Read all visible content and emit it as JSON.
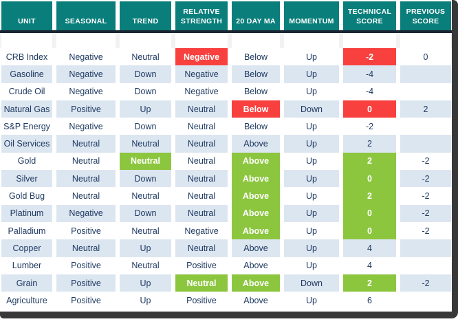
{
  "colors": {
    "header_bg": "#0A7E7B",
    "divider": "#1A2533",
    "row_alt": "#DCE6F1",
    "text": "#1F3A60",
    "red": "#F8403E",
    "green": "#8CC63F",
    "frame": "#383838",
    "highlight_text": "#FFFFFF"
  },
  "table": {
    "columns": [
      {
        "id": "unit",
        "label": "UNIT"
      },
      {
        "id": "seasonal",
        "label": "SEASONAL"
      },
      {
        "id": "trend",
        "label": "TREND"
      },
      {
        "id": "relative-strength",
        "label": "RELATIVE STRENGTH"
      },
      {
        "id": "twenty-day-ma",
        "label": "20 DAY MA"
      },
      {
        "id": "momentum",
        "label": "MOMENTUM"
      },
      {
        "id": "technical-score",
        "label": "TECHNICAL SCORE"
      },
      {
        "id": "previous-score",
        "label": "PREVIOUS SCORE"
      }
    ],
    "rows": [
      {
        "unit": "CRB Index",
        "values": [
          {
            "v": "Negative"
          },
          {
            "v": "Neutral"
          },
          {
            "v": "Negative",
            "h": "red"
          },
          {
            "v": "Below"
          },
          {
            "v": "Up"
          },
          {
            "v": "-2",
            "h": "red"
          },
          {
            "v": "0"
          }
        ]
      },
      {
        "unit": "Gasoline",
        "values": [
          {
            "v": "Negative"
          },
          {
            "v": "Down"
          },
          {
            "v": "Negative"
          },
          {
            "v": "Below"
          },
          {
            "v": "Up"
          },
          {
            "v": "-4"
          },
          {
            "v": ""
          }
        ]
      },
      {
        "unit": "Crude Oil",
        "values": [
          {
            "v": "Negative"
          },
          {
            "v": "Down"
          },
          {
            "v": "Negative"
          },
          {
            "v": "Below"
          },
          {
            "v": "Up"
          },
          {
            "v": "-4"
          },
          {
            "v": ""
          }
        ]
      },
      {
        "unit": "Natural Gas",
        "values": [
          {
            "v": "Positive"
          },
          {
            "v": "Up"
          },
          {
            "v": "Neutral"
          },
          {
            "v": "Below",
            "h": "red"
          },
          {
            "v": "Down"
          },
          {
            "v": "0",
            "h": "red"
          },
          {
            "v": "2"
          }
        ]
      },
      {
        "unit": "S&P Energy",
        "values": [
          {
            "v": "Negative"
          },
          {
            "v": "Down"
          },
          {
            "v": "Neutral"
          },
          {
            "v": "Below"
          },
          {
            "v": "Up"
          },
          {
            "v": "-2"
          },
          {
            "v": ""
          }
        ]
      },
      {
        "unit": "Oil Services",
        "values": [
          {
            "v": "Neutral"
          },
          {
            "v": "Neutral"
          },
          {
            "v": "Neutral"
          },
          {
            "v": "Above"
          },
          {
            "v": "Up"
          },
          {
            "v": "2"
          },
          {
            "v": ""
          }
        ]
      },
      {
        "unit": "Gold",
        "values": [
          {
            "v": "Neutral"
          },
          {
            "v": "Neutral",
            "h": "green"
          },
          {
            "v": "Neutral"
          },
          {
            "v": "Above",
            "h": "green"
          },
          {
            "v": "Up"
          },
          {
            "v": "2",
            "h": "green"
          },
          {
            "v": "-2"
          }
        ]
      },
      {
        "unit": "Silver",
        "values": [
          {
            "v": "Neutral"
          },
          {
            "v": "Down"
          },
          {
            "v": "Neutral"
          },
          {
            "v": "Above",
            "h": "green"
          },
          {
            "v": "Up"
          },
          {
            "v": "0",
            "h": "green"
          },
          {
            "v": "-2"
          }
        ]
      },
      {
        "unit": "Gold Bug",
        "values": [
          {
            "v": "Neutral"
          },
          {
            "v": "Neutral"
          },
          {
            "v": "Neutral"
          },
          {
            "v": "Above",
            "h": "green"
          },
          {
            "v": "Up"
          },
          {
            "v": "2",
            "h": "green"
          },
          {
            "v": "-2"
          }
        ]
      },
      {
        "unit": "Platinum",
        "values": [
          {
            "v": "Negative"
          },
          {
            "v": "Down"
          },
          {
            "v": "Neutral"
          },
          {
            "v": "Above",
            "h": "green"
          },
          {
            "v": "Up"
          },
          {
            "v": "0",
            "h": "green"
          },
          {
            "v": "-2"
          }
        ]
      },
      {
        "unit": "Palladium",
        "values": [
          {
            "v": "Positive"
          },
          {
            "v": "Neutral"
          },
          {
            "v": "Negative"
          },
          {
            "v": "Above",
            "h": "green"
          },
          {
            "v": "Up"
          },
          {
            "v": "0",
            "h": "green"
          },
          {
            "v": "-2"
          }
        ]
      },
      {
        "unit": "Copper",
        "values": [
          {
            "v": "Neutral"
          },
          {
            "v": "Up"
          },
          {
            "v": "Neutral"
          },
          {
            "v": "Above"
          },
          {
            "v": "Up"
          },
          {
            "v": "4"
          },
          {
            "v": ""
          }
        ]
      },
      {
        "unit": "Lumber",
        "values": [
          {
            "v": "Positive"
          },
          {
            "v": "Neutral"
          },
          {
            "v": "Positive"
          },
          {
            "v": "Above"
          },
          {
            "v": "Up"
          },
          {
            "v": "4"
          },
          {
            "v": ""
          }
        ]
      },
      {
        "unit": "Grain",
        "values": [
          {
            "v": "Positive"
          },
          {
            "v": "Up"
          },
          {
            "v": "Neutral",
            "h": "green"
          },
          {
            "v": "Above",
            "h": "green"
          },
          {
            "v": "Down"
          },
          {
            "v": "2",
            "h": "green"
          },
          {
            "v": "-2"
          }
        ]
      },
      {
        "unit": "Agriculture",
        "values": [
          {
            "v": "Positive"
          },
          {
            "v": "Up"
          },
          {
            "v": "Positive"
          },
          {
            "v": "Above"
          },
          {
            "v": "Up"
          },
          {
            "v": "6"
          },
          {
            "v": ""
          }
        ]
      }
    ]
  },
  "chart_data": {
    "type": "table",
    "title": "Commodity technical score table",
    "columns": [
      "UNIT",
      "SEASONAL",
      "TREND",
      "RELATIVE STRENGTH",
      "20 DAY MA",
      "MOMENTUM",
      "TECHNICAL SCORE",
      "PREVIOUS SCORE"
    ],
    "rows": [
      [
        "CRB Index",
        "Negative",
        "Neutral",
        "Negative",
        "Below",
        "Up",
        -2,
        0
      ],
      [
        "Gasoline",
        "Negative",
        "Down",
        "Negative",
        "Below",
        "Up",
        -4,
        null
      ],
      [
        "Crude Oil",
        "Negative",
        "Down",
        "Negative",
        "Below",
        "Up",
        -4,
        null
      ],
      [
        "Natural Gas",
        "Positive",
        "Up",
        "Neutral",
        "Below",
        "Down",
        0,
        2
      ],
      [
        "S&P Energy",
        "Negative",
        "Down",
        "Neutral",
        "Below",
        "Up",
        -2,
        null
      ],
      [
        "Oil Services",
        "Neutral",
        "Neutral",
        "Neutral",
        "Above",
        "Up",
        2,
        null
      ],
      [
        "Gold",
        "Neutral",
        "Neutral",
        "Neutral",
        "Above",
        "Up",
        2,
        -2
      ],
      [
        "Silver",
        "Neutral",
        "Down",
        "Neutral",
        "Above",
        "Up",
        0,
        -2
      ],
      [
        "Gold Bug",
        "Neutral",
        "Neutral",
        "Neutral",
        "Above",
        "Up",
        2,
        -2
      ],
      [
        "Platinum",
        "Negative",
        "Down",
        "Neutral",
        "Above",
        "Up",
        0,
        -2
      ],
      [
        "Palladium",
        "Positive",
        "Neutral",
        "Negative",
        "Above",
        "Up",
        0,
        -2
      ],
      [
        "Copper",
        "Neutral",
        "Up",
        "Neutral",
        "Above",
        "Up",
        4,
        null
      ],
      [
        "Lumber",
        "Positive",
        "Neutral",
        "Positive",
        "Above",
        "Up",
        4,
        null
      ],
      [
        "Grain",
        "Positive",
        "Up",
        "Neutral",
        "Above",
        "Down",
        2,
        -2
      ],
      [
        "Agriculture",
        "Positive",
        "Up",
        "Positive",
        "Above",
        "Up",
        6,
        null
      ]
    ],
    "highlights": {
      "red_cells": "negative alerts (CRB Index relative strength & technical score; Natural Gas 20-day MA & technical score)",
      "green_cells": "positive alerts (Gold trend; Grain relative strength; Above 20-day MA and technical scores for Gold, Silver, Gold Bug, Platinum, Palladium, Grain)"
    },
    "legend_position": "none",
    "grid": false
  }
}
